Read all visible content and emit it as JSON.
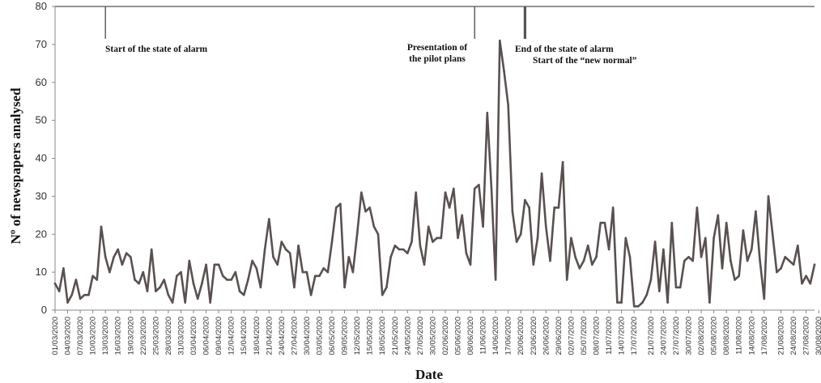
{
  "chart_data": {
    "type": "line",
    "xlabel": "Date",
    "ylabel": "Nº of newspapers analysed",
    "ylim": [
      0,
      80
    ],
    "yticks": [
      0,
      10,
      20,
      30,
      40,
      50,
      60,
      70,
      80
    ],
    "x_tick_labels": [
      "01/03/2020",
      "04/03/2020",
      "07/03/2020",
      "10/03/2020",
      "13/03/2020",
      "16/03/2020",
      "19/03/2020",
      "22/03/2020",
      "25/03/2020",
      "28/03/2020",
      "31/03/2020",
      "03/04/2020",
      "06/04/2020",
      "09/04/2020",
      "12/04/2020",
      "15/04/2020",
      "18/04/2020",
      "21/04/2020",
      "24/04/2020",
      "27/04/2020",
      "30/04/2020",
      "03/05/2020",
      "06/05/2020",
      "09/05/2020",
      "12/05/2020",
      "15/05/2020",
      "18/05/2020",
      "21/05/2020",
      "24/05/2020",
      "27/05/2020",
      "30/05/2020",
      "02/06/2020",
      "05/06/2020",
      "08/06/2020",
      "11/06/2020",
      "14/06/2020",
      "17/06/2020",
      "20/06/2020",
      "23/06/2020",
      "26/06/2020",
      "29/06/2020",
      "02/07/2020",
      "05/07/2020",
      "08/07/2020",
      "11/07/2020",
      "14/07/2020",
      "17/07/2020",
      "21/07/2020",
      "24/07/2020",
      "27/07/2020",
      "30/07/2020",
      "02/08/2020",
      "05/08/2020",
      "08/08/2020",
      "11/08/2020",
      "14/08/2020",
      "17/08/2020",
      "21/08/2020",
      "24/08/2020",
      "27/08/2020",
      "30/08/2020"
    ],
    "x_start": "01/03/2020",
    "x_end": "31/08/2020",
    "grid": false,
    "line_color": "#5a5050",
    "annotations": [
      {
        "date": "13/03/2020",
        "label_lines": [
          "Start of the state of alarm"
        ]
      },
      {
        "date": "09/06/2020",
        "label_lines": [
          "Presentation of",
          "the pilot plans"
        ]
      },
      {
        "date": "21/06/2020",
        "label_lines": [
          "End of the state of alarm",
          "Start of the “new normal”"
        ]
      }
    ],
    "series": [
      {
        "values": [
          7,
          5,
          11,
          2,
          4,
          8,
          3,
          4,
          4,
          9,
          8,
          22,
          14,
          10,
          14,
          16,
          12,
          15,
          14,
          8,
          7,
          10,
          5,
          16,
          5,
          6,
          8,
          4,
          2,
          9,
          10,
          2,
          13,
          7,
          3,
          7,
          12,
          2,
          12,
          12,
          9,
          8,
          8,
          10,
          5,
          4,
          8,
          13,
          11,
          6,
          16,
          24,
          14,
          12,
          18,
          16,
          15,
          6,
          17,
          10,
          10,
          4,
          9,
          9,
          11,
          10,
          18,
          27,
          28,
          6,
          14,
          10,
          20,
          31,
          26,
          27,
          22,
          20,
          4,
          6,
          14,
          17,
          16,
          16,
          15,
          18,
          31,
          17,
          12,
          22,
          18,
          19,
          19,
          31,
          27,
          32,
          19,
          25,
          15,
          12,
          32,
          33,
          22,
          52,
          32,
          8,
          71,
          63,
          54,
          26,
          18,
          20,
          29,
          27,
          12,
          19,
          36,
          22,
          13,
          27,
          27,
          39,
          8,
          19,
          14,
          11,
          13,
          17,
          12,
          14,
          23,
          23,
          16,
          27,
          2,
          2,
          19,
          14,
          1,
          1,
          2,
          4,
          8,
          18,
          5,
          16,
          2,
          23,
          6,
          6,
          13,
          14,
          13,
          27,
          14,
          19,
          2,
          19,
          25,
          11,
          23,
          13,
          8,
          9,
          21,
          13,
          16,
          26,
          13,
          3,
          30,
          20,
          10,
          11,
          14,
          13,
          12,
          17,
          7,
          9,
          7,
          12
        ]
      }
    ]
  }
}
